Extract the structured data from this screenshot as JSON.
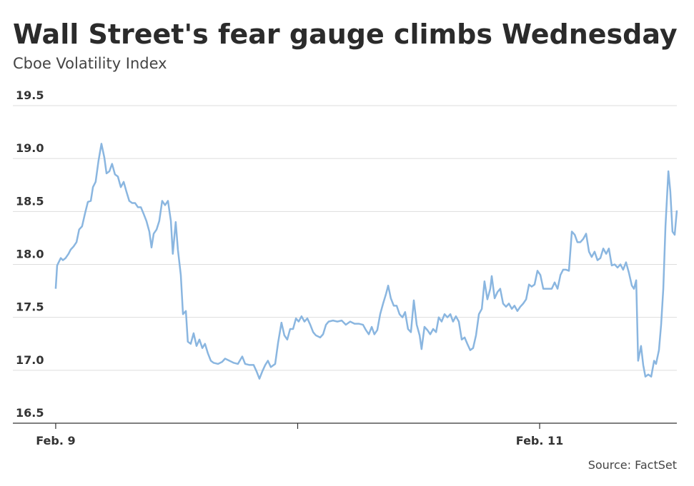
{
  "chart_data": {
    "type": "line",
    "title": "Wall Street's fear gauge climbs Wednesday",
    "subtitle": "Cboe Volatility Index",
    "source": "Source: FactSet",
    "color": "#8ab6e0",
    "grid": true,
    "xlim": [
      -0.177,
      2.567
    ],
    "xticks": [
      {
        "value": 0,
        "label": "Feb. 9"
      },
      {
        "value": 1,
        "label": null
      },
      {
        "value": 2,
        "label": "Feb. 11"
      }
    ],
    "ylim": [
      16.5,
      19.5
    ],
    "yticks": [
      16.5,
      {
        "value": 17,
        "label": "17.0"
      },
      17.5,
      {
        "value": 18,
        "label": "18.0"
      },
      18.5,
      {
        "value": 19,
        "label": "19.0"
      },
      19.5
    ],
    "series": [
      {
        "name": "Cboe Volatility Index",
        "x": [
          0,
          0.006,
          0.021,
          0.03,
          0.041,
          0.053,
          0.062,
          0.074,
          0.086,
          0.097,
          0.109,
          0.121,
          0.133,
          0.145,
          0.154,
          0.165,
          0.177,
          0.189,
          0.201,
          0.21,
          0.222,
          0.233,
          0.245,
          0.257,
          0.269,
          0.281,
          0.292,
          0.304,
          0.316,
          0.328,
          0.34,
          0.352,
          0.363,
          0.375,
          0.387,
          0.396,
          0.405,
          0.417,
          0.428,
          0.44,
          0.452,
          0.464,
          0.476,
          0.484,
          0.496,
          0.505,
          0.517,
          0.526,
          0.538,
          0.546,
          0.558,
          0.57,
          0.582,
          0.594,
          0.606,
          0.617,
          0.629,
          0.641,
          0.653,
          0.671,
          0.688,
          0.7,
          0.718,
          0.736,
          0.753,
          0.771,
          0.783,
          0.801,
          0.818,
          0.83,
          0.842,
          0.854,
          0.866,
          0.877,
          0.889,
          0.907,
          0.919,
          0.933,
          0.945,
          0.957,
          0.969,
          0.981,
          0.993,
          1.004,
          1.016,
          1.028,
          1.04,
          1.052,
          1.064,
          1.075,
          1.093,
          1.105,
          1.117,
          1.128,
          1.146,
          1.164,
          1.182,
          1.199,
          1.217,
          1.235,
          1.252,
          1.27,
          1.282,
          1.294,
          1.306,
          1.317,
          1.329,
          1.341,
          1.353,
          1.365,
          1.374,
          1.385,
          1.397,
          1.409,
          1.421,
          1.433,
          1.444,
          1.456,
          1.468,
          1.48,
          1.492,
          1.504,
          1.512,
          1.524,
          1.536,
          1.548,
          1.56,
          1.572,
          1.583,
          1.595,
          1.607,
          1.619,
          1.631,
          1.642,
          1.654,
          1.666,
          1.678,
          1.69,
          1.701,
          1.713,
          1.725,
          1.737,
          1.749,
          1.761,
          1.772,
          1.784,
          1.796,
          1.802,
          1.814,
          1.826,
          1.837,
          1.849,
          1.861,
          1.873,
          1.885,
          1.896,
          1.908,
          1.92,
          1.932,
          1.944,
          1.956,
          1.967,
          1.979,
          1.991,
          2.003,
          2.015,
          2.032,
          2.05,
          2.062,
          2.074,
          2.086,
          2.097,
          2.109,
          2.121,
          2.133,
          2.145,
          2.156,
          2.168,
          2.18,
          2.192,
          2.204,
          2.215,
          2.227,
          2.239,
          2.251,
          2.263,
          2.275,
          2.286,
          2.298,
          2.31,
          2.322,
          2.334,
          2.345,
          2.357,
          2.369,
          2.381,
          2.39,
          2.399,
          2.407,
          2.419,
          2.428,
          2.437,
          2.449,
          2.461,
          2.473,
          2.481,
          2.493,
          2.502,
          2.511,
          2.52,
          2.532,
          2.54,
          2.549,
          2.558,
          2.567
        ],
        "values": [
          17.77,
          17.99,
          18.06,
          18.04,
          18.06,
          18.1,
          18.14,
          18.17,
          18.21,
          18.33,
          18.36,
          18.48,
          18.59,
          18.6,
          18.73,
          18.78,
          18.98,
          19.14,
          19.01,
          18.86,
          18.88,
          18.95,
          18.85,
          18.83,
          18.73,
          18.78,
          18.69,
          18.6,
          18.58,
          18.58,
          18.54,
          18.54,
          18.48,
          18.41,
          18.31,
          18.16,
          18.29,
          18.33,
          18.41,
          18.6,
          18.56,
          18.6,
          18.41,
          18.1,
          18.4,
          18.14,
          17.9,
          17.53,
          17.56,
          17.27,
          17.25,
          17.35,
          17.23,
          17.29,
          17.21,
          17.25,
          17.16,
          17.09,
          17.07,
          17.06,
          17.08,
          17.11,
          17.09,
          17.07,
          17.06,
          17.13,
          17.06,
          17.05,
          17.05,
          16.99,
          16.92,
          16.99,
          17.05,
          17.09,
          17.03,
          17.06,
          17.26,
          17.45,
          17.33,
          17.29,
          17.39,
          17.39,
          17.49,
          17.46,
          17.51,
          17.46,
          17.49,
          17.43,
          17.36,
          17.33,
          17.31,
          17.34,
          17.43,
          17.46,
          17.47,
          17.46,
          17.47,
          17.43,
          17.46,
          17.44,
          17.44,
          17.43,
          17.38,
          17.34,
          17.41,
          17.34,
          17.38,
          17.53,
          17.63,
          17.72,
          17.8,
          17.68,
          17.61,
          17.61,
          17.53,
          17.5,
          17.55,
          17.39,
          17.36,
          17.66,
          17.43,
          17.33,
          17.2,
          17.41,
          17.38,
          17.34,
          17.39,
          17.36,
          17.5,
          17.46,
          17.53,
          17.5,
          17.53,
          17.46,
          17.51,
          17.46,
          17.29,
          17.31,
          17.25,
          17.19,
          17.21,
          17.33,
          17.53,
          17.58,
          17.84,
          17.67,
          17.77,
          17.89,
          17.68,
          17.74,
          17.77,
          17.63,
          17.6,
          17.63,
          17.58,
          17.61,
          17.56,
          17.6,
          17.63,
          17.67,
          17.81,
          17.79,
          17.81,
          17.94,
          17.9,
          17.77,
          17.77,
          17.77,
          17.83,
          17.77,
          17.9,
          17.95,
          17.95,
          17.94,
          18.31,
          18.28,
          18.21,
          18.21,
          18.24,
          18.29,
          18.12,
          18.07,
          18.12,
          18.04,
          18.06,
          18.15,
          18.1,
          18.15,
          17.99,
          18.0,
          17.97,
          18.0,
          17.95,
          18.02,
          17.92,
          17.8,
          17.77,
          17.85,
          17.09,
          17.23,
          17.05,
          16.94,
          16.96,
          16.94,
          17.09,
          17.06,
          17.19,
          17.43,
          17.77,
          18.36,
          18.88,
          18.69,
          18.31,
          18.28,
          18.51
        ]
      }
    ]
  }
}
